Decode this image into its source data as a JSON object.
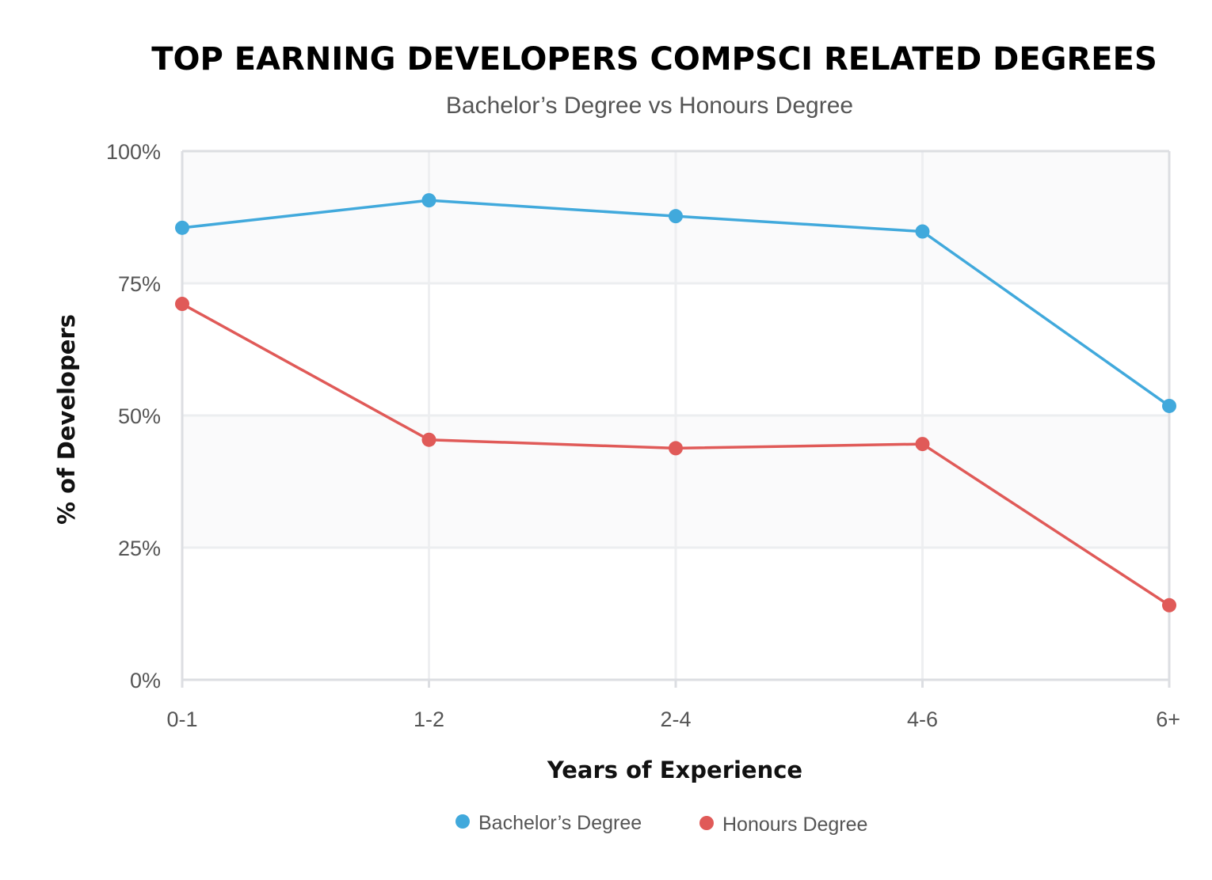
{
  "chart_data": {
    "type": "line",
    "title": "TOP EARNING DEVELOPERS COMPSCI RELATED DEGREES",
    "subtitle": "Bachelor’s Degree vs Honours Degree",
    "xlabel": "Years of Experience",
    "ylabel": "% of Developers",
    "categories": [
      "0-1",
      "1-2",
      "2-4",
      "4-6",
      "6+"
    ],
    "yticks": [
      0,
      25,
      50,
      75,
      100
    ],
    "ytick_labels": [
      "0%",
      "25%",
      "50%",
      "75%",
      "100%"
    ],
    "ylim": [
      0,
      100
    ],
    "grid": true,
    "legend_position": "bottom",
    "series": [
      {
        "name": "Bachelor’s Degree",
        "color": "#41a9dc",
        "values": [
          85.5,
          90.7,
          87.7,
          84.8,
          51.8
        ]
      },
      {
        "name": "Honours Degree",
        "color": "#e05a58",
        "values": [
          71.1,
          45.4,
          43.8,
          44.6,
          14.1
        ]
      }
    ]
  }
}
